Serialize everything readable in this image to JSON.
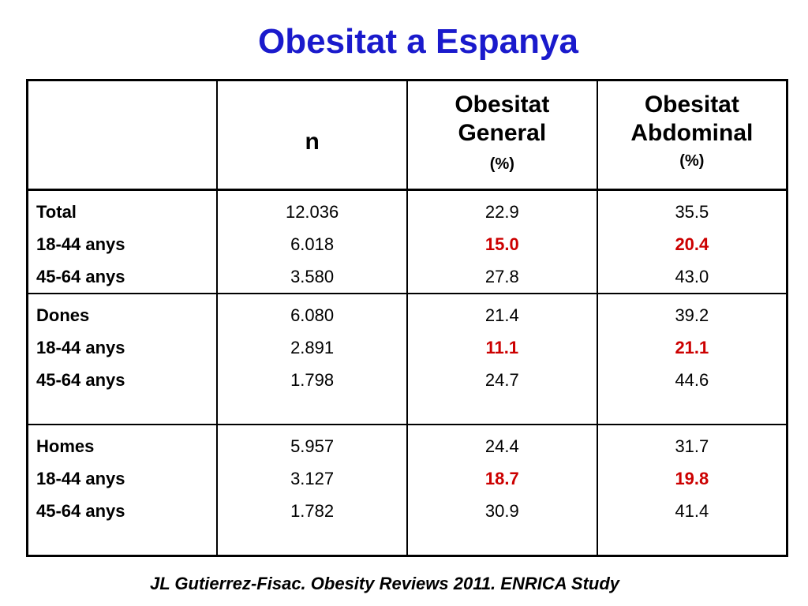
{
  "title": "Obesitat a Espanya",
  "table": {
    "headers": {
      "col0": "",
      "n": "n",
      "general_line1": "Obesitat",
      "general_line2": "General",
      "general_unit": "(%)",
      "abdominal_line1": "Obesitat",
      "abdominal_line2": "Abdominal",
      "abdominal_unit": "(%)"
    },
    "groups": [
      {
        "rows": [
          {
            "label": "Total",
            "n": "12.036",
            "general": "22.9",
            "abdominal": "35.5",
            "highlight": false
          },
          {
            "label": "18-44 anys",
            "n": "6.018",
            "general": "15.0",
            "abdominal": "20.4",
            "highlight": true
          },
          {
            "label": "45-64 anys",
            "n": "3.580",
            "general": "27.8",
            "abdominal": "43.0",
            "highlight": false
          }
        ]
      },
      {
        "rows": [
          {
            "label": "Dones",
            "n": "6.080",
            "general": "21.4",
            "abdominal": "39.2",
            "highlight": false
          },
          {
            "label": "18-44 anys",
            "n": "2.891",
            "general": "11.1",
            "abdominal": "21.1",
            "highlight": true
          },
          {
            "label": "45-64 anys",
            "n": "1.798",
            "general": "24.7",
            "abdominal": "44.6",
            "highlight": false
          }
        ]
      },
      {
        "rows": [
          {
            "label": "Homes",
            "n": "5.957",
            "general": "24.4",
            "abdominal": "31.7",
            "highlight": false
          },
          {
            "label": "18-44 anys",
            "n": "3.127",
            "general": "18.7",
            "abdominal": "19.8",
            "highlight": true
          },
          {
            "label": "45-64 anys",
            "n": "1.782",
            "general": "30.9",
            "abdominal": "41.4",
            "highlight": false
          }
        ]
      }
    ]
  },
  "citation": "JL Gutierrez-Fisac. Obesity Reviews 2011. ENRICA Study",
  "colors": {
    "title": "#1a1acc",
    "highlight": "#cc0000"
  }
}
